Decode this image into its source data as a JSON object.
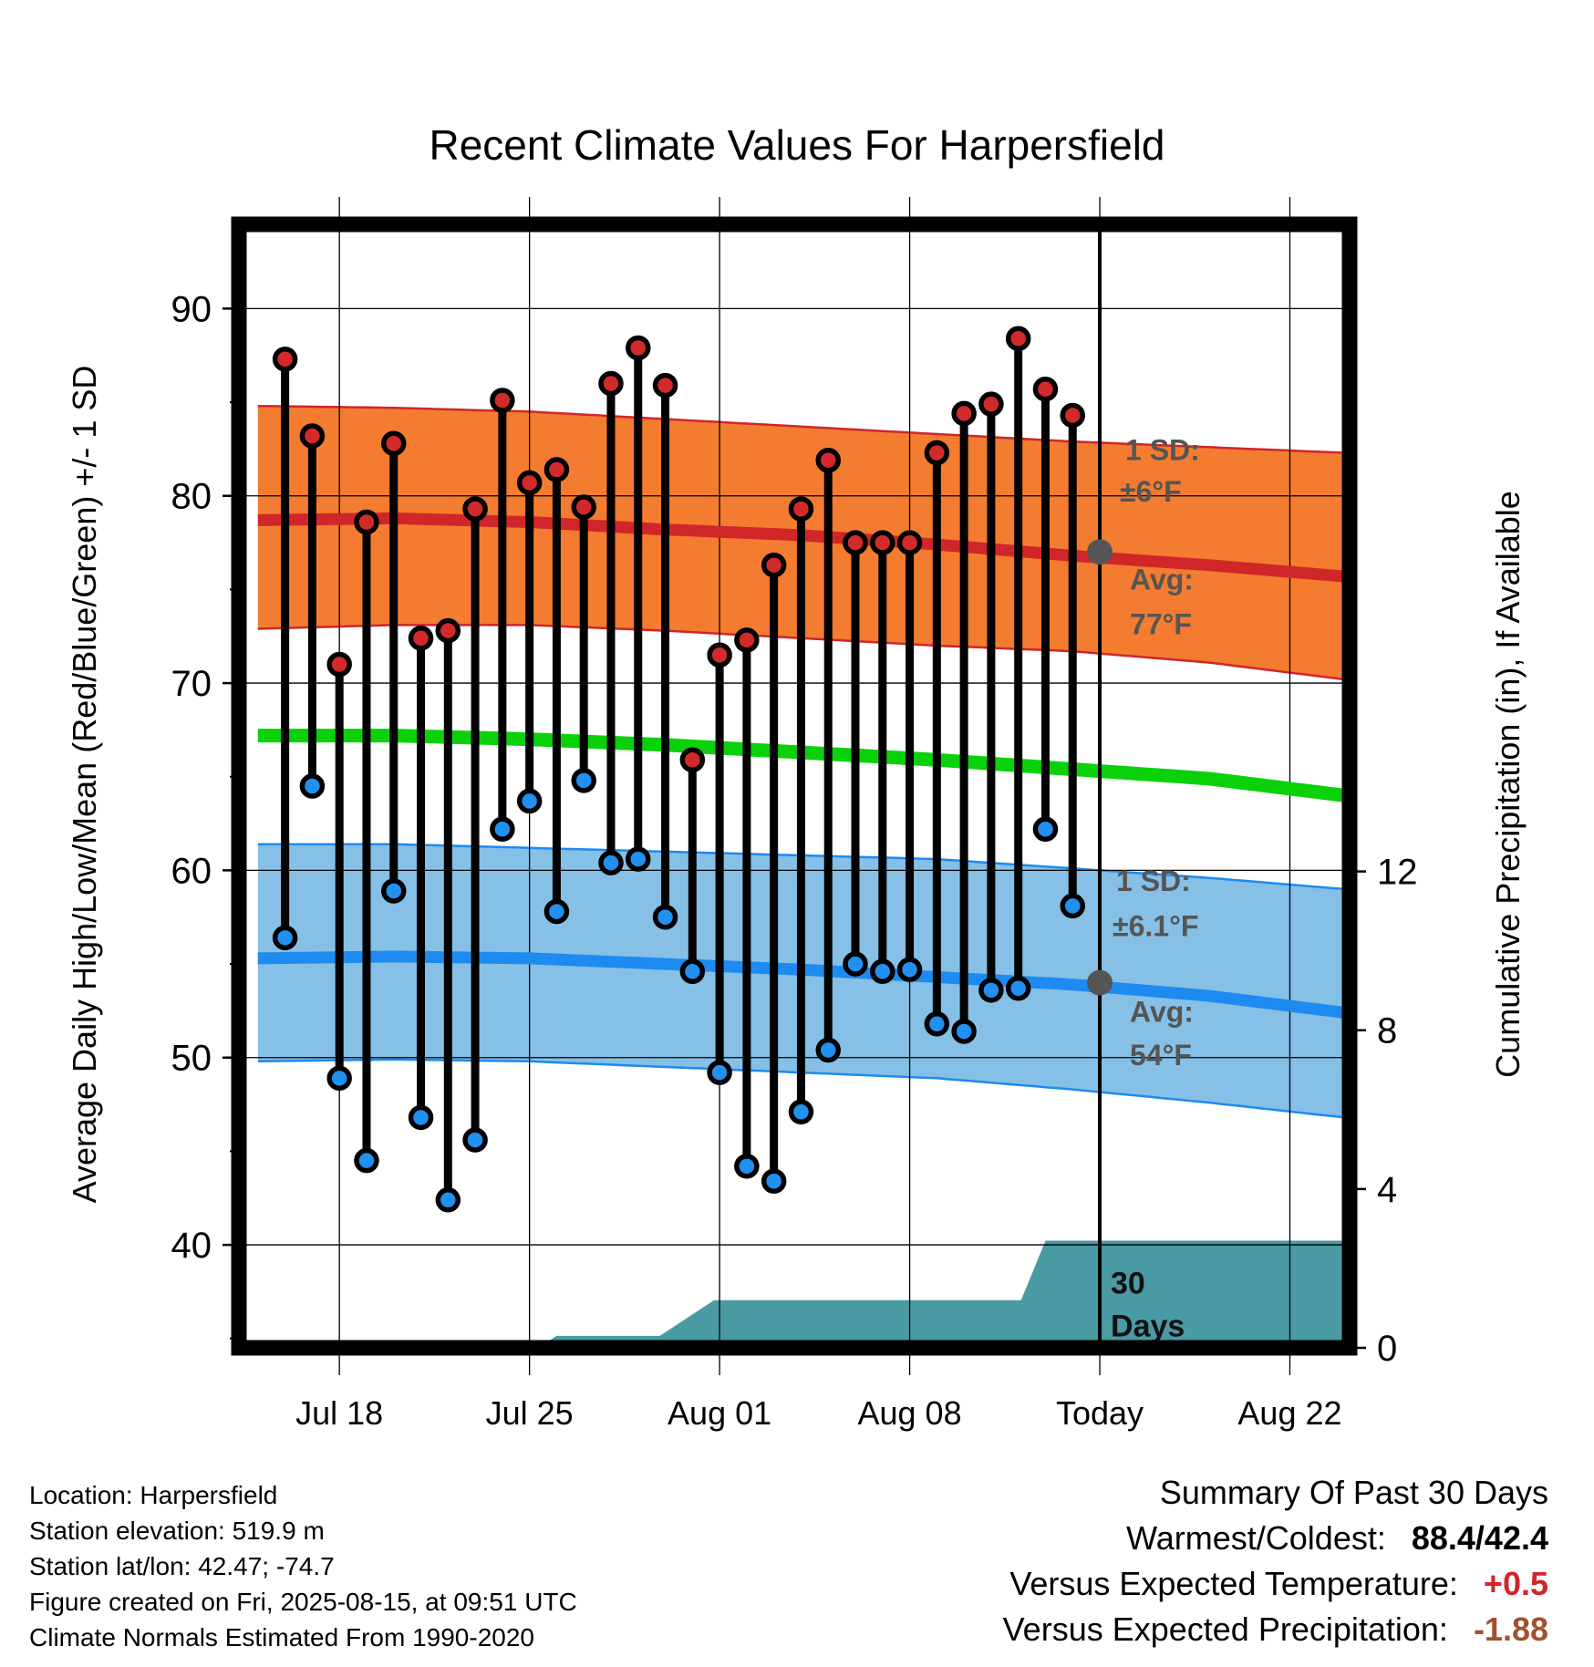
{
  "chart_data": {
    "type": "line",
    "title": "Recent Climate Values For Harpersfield",
    "xlabel": "Day",
    "ylabel_left": "Average Daily High/Low/Mean (Red/Blue/Green) +/- 1 SD",
    "ylabel_right": "Cumulative Precipitation (in), If Available",
    "x_tick_labels": [
      "Jul 18",
      "Jul 25",
      "Aug 01",
      "Aug 08",
      "Today",
      "Aug 22"
    ],
    "x_tick_days": [
      3,
      10,
      17,
      24,
      31,
      38
    ],
    "x_range_days": [
      -0.7,
      40.2
    ],
    "ylim_left": [
      34.5,
      94.5
    ],
    "y_ticks_left": [
      40,
      50,
      60,
      70,
      80,
      90
    ],
    "ylim_right": [
      0,
      28.3
    ],
    "y_ticks_right": [
      0,
      4,
      8,
      12
    ],
    "grid": true,
    "today_day": 31,
    "daily_high": [
      87.3,
      83.2,
      71.0,
      78.6,
      82.8,
      72.4,
      72.8,
      79.3,
      85.1,
      80.7,
      81.4,
      79.4,
      86.0,
      87.9,
      85.9,
      65.9,
      71.5,
      72.3,
      76.3,
      79.3,
      81.9,
      77.5,
      77.5,
      77.5,
      82.3,
      84.4,
      84.9,
      88.4,
      85.7,
      84.3
    ],
    "daily_low": [
      56.4,
      64.5,
      48.9,
      44.5,
      58.9,
      46.8,
      42.4,
      45.6,
      62.2,
      63.7,
      57.8,
      64.8,
      60.4,
      60.6,
      57.5,
      54.6,
      49.2,
      44.2,
      43.4,
      47.1,
      50.4,
      55.0,
      54.6,
      54.7,
      51.8,
      51.4,
      53.6,
      53.7,
      62.2,
      58.1
    ],
    "normal_high": {
      "days": [
        0,
        5,
        10,
        15,
        20,
        25,
        30,
        35,
        40
      ],
      "mean": [
        78.7,
        78.8,
        78.6,
        78.2,
        77.9,
        77.4,
        76.8,
        76.3,
        75.7
      ],
      "sd_band_upper": [
        84.8,
        84.7,
        84.5,
        84.1,
        83.7,
        83.3,
        82.9,
        82.6,
        82.3
      ],
      "sd_band_lower": [
        72.9,
        73.1,
        73.1,
        72.8,
        72.4,
        72.0,
        71.7,
        71.1,
        70.2
      ]
    },
    "normal_mean": {
      "days": [
        0,
        5,
        10,
        15,
        20,
        25,
        30,
        35,
        40
      ],
      "values": [
        67.2,
        67.2,
        67.0,
        66.7,
        66.3,
        65.9,
        65.4,
        64.9,
        64.0
      ]
    },
    "normal_low": {
      "days": [
        0,
        5,
        10,
        15,
        20,
        25,
        30,
        35,
        40
      ],
      "mean": [
        55.3,
        55.4,
        55.3,
        55.0,
        54.7,
        54.3,
        53.9,
        53.3,
        52.4
      ],
      "sd_band_upper": [
        61.4,
        61.4,
        61.2,
        61.0,
        60.8,
        60.6,
        60.1,
        59.6,
        59.0
      ],
      "sd_band_lower": [
        49.8,
        49.9,
        49.8,
        49.5,
        49.2,
        48.9,
        48.3,
        47.6,
        46.8
      ]
    },
    "cumulative_precipitation": {
      "steps_start_day": [
        10.3,
        11.0,
        14.8,
        16.8,
        28.1,
        29.0
      ],
      "steps_value": [
        0,
        0.3,
        0.3,
        1.2,
        1.2,
        2.7
      ],
      "end_day": 40.2
    },
    "annotations": {
      "high_sd": "1 SD:",
      "high_sd_value": "±6°F",
      "high_avg": "Avg:",
      "high_avg_value": "77°F",
      "high_avg_temp": 77,
      "low_sd": "1 SD:",
      "low_sd_value": "±6.1°F",
      "low_avg": "Avg:",
      "low_avg_value": "54°F",
      "low_avg_temp": 54,
      "window_line1": "30",
      "window_line2": "Days"
    },
    "colors": {
      "high_band": "#f47c30",
      "high_line": "#d0262a",
      "mean_line": "#0bd10b",
      "low_band": "#86c0e6",
      "low_line": "#1d8bf0",
      "precip": "#4a9aa3",
      "high_dot": "#d22a2a",
      "low_dot": "#2290f0",
      "avg_marker": "#555555"
    }
  },
  "info": {
    "location": "Location: Harpersfield",
    "elevation": "Station elevation: 519.9 m",
    "latlon": "Station lat/lon: 42.47; -74.7",
    "created": "Figure created on Fri, 2025-08-15, at 09:51 UTC",
    "normals": "Climate Normals Estimated From 1990-2020"
  },
  "summary": {
    "title": "Summary Of Past 30 Days",
    "warmest_label": "Warmest/Coldest:",
    "warmest_value": "88.4/42.4",
    "temp_label": "Versus Expected Temperature:",
    "temp_value": "+0.5",
    "temp_color": "#d0262a",
    "precip_label": "Versus Expected Precipitation:",
    "precip_value": "-1.88",
    "precip_color": "#a0522d"
  }
}
